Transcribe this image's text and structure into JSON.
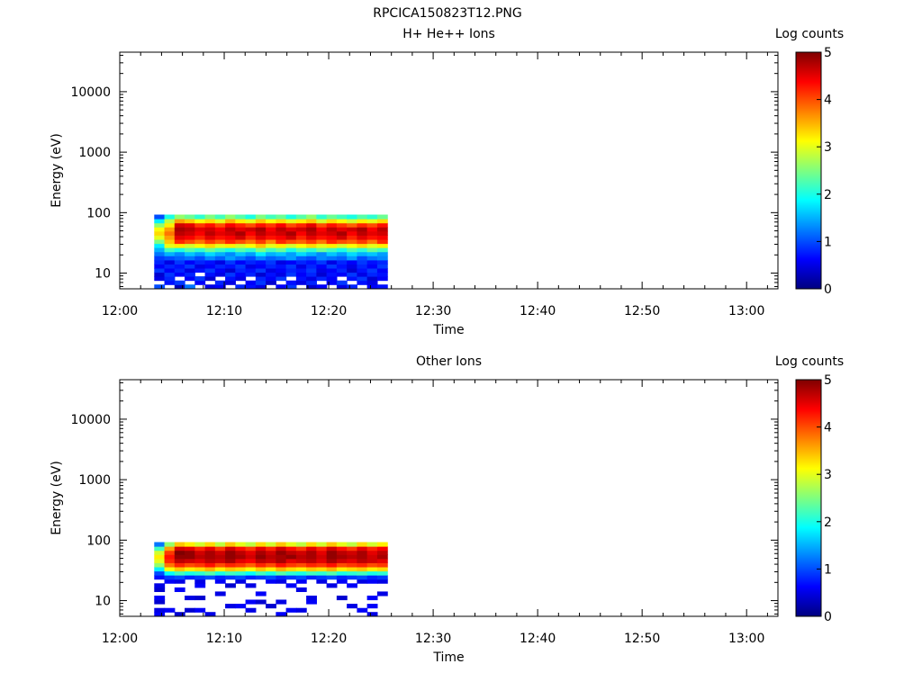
{
  "figure_title": "RPCICA150823T12.PNG",
  "colorbar_palette": [
    "#00007f",
    "#0000ff",
    "#007fff",
    "#00ffff",
    "#7fff7f",
    "#ffff00",
    "#ff7f00",
    "#ff0000",
    "#7f0000"
  ],
  "chart_data": [
    {
      "type": "heatmap",
      "title": "H+ He++ Ions",
      "xlabel": "Time",
      "ylabel": "Energy (eV)",
      "x_tick_labels": [
        "12:00",
        "12:10",
        "12:20",
        "12:30",
        "12:40",
        "12:50",
        "13:00"
      ],
      "x_range_minutes": [
        0,
        63
      ],
      "y_scale": "log",
      "y_tick_labels": [
        "10",
        "100",
        "1000",
        "10000"
      ],
      "y_range": [
        5.5,
        45000
      ],
      "colorbar": {
        "label": "Log counts",
        "range": [
          0,
          5
        ],
        "tick_labels": [
          "0",
          "1",
          "2",
          "3",
          "4",
          "5"
        ]
      },
      "data": {
        "time_start_minutes": 3.3,
        "time_step_minutes": 0.97,
        "energy_bins_eV": [
          6.0,
          7.0,
          8.2,
          9.6,
          11.2,
          13.1,
          15.3,
          17.9,
          21.0,
          24.5,
          28.7,
          33.5,
          39.2,
          45.9,
          53.7,
          62.8,
          73.4,
          85.9
        ],
        "values": [
          [
            1.0,
            null,
            0.3,
            1.2,
            null,
            0.5,
            0.6,
            null,
            0.8,
            0.7,
            0.5,
            null,
            0.6,
            0.9,
            null,
            0.4,
            0.6,
            null,
            0.5,
            0.8,
            null,
            0.6,
            0.7
          ],
          [
            null,
            0.7,
            0.9,
            null,
            0.6,
            null,
            0.8,
            0.5,
            null,
            0.6,
            0.9,
            0.4,
            null,
            0.7,
            0.5,
            0.8,
            null,
            0.6,
            0.9,
            null,
            0.7,
            0.5,
            null
          ],
          [
            0.5,
            0.8,
            null,
            0.6,
            0.9,
            0.4,
            null,
            0.7,
            0.5,
            null,
            0.8,
            0.6,
            0.9,
            null,
            0.7,
            0.5,
            0.8,
            0.6,
            null,
            0.7,
            0.9,
            0.4,
            0.6
          ],
          [
            0.4,
            0.9,
            0.6,
            0.8,
            null,
            0.7,
            0.5,
            0.9,
            0.6,
            0.8,
            0.4,
            0.7,
            0.5,
            0.9,
            0.6,
            0.8,
            0.4,
            0.7,
            0.6,
            0.9,
            0.5,
            0.8,
            0.7
          ],
          [
            0.9,
            0.6,
            0.8,
            0.5,
            0.7,
            0.9,
            0.6,
            0.4,
            0.8,
            0.7,
            0.9,
            0.5,
            0.6,
            0.8,
            0.7,
            0.9,
            0.5,
            0.6,
            0.8,
            0.4,
            0.7,
            0.9,
            0.6
          ],
          [
            0.6,
            0.8,
            0.7,
            0.9,
            0.5,
            0.6,
            0.8,
            0.7,
            0.9,
            0.5,
            0.6,
            0.8,
            0.7,
            0.9,
            0.5,
            0.8,
            0.6,
            0.9,
            0.7,
            0.5,
            0.8,
            0.6,
            0.9
          ],
          [
            0.8,
            0.5,
            0.9,
            0.6,
            0.8,
            0.7,
            0.5,
            0.9,
            0.6,
            0.8,
            0.7,
            0.9,
            0.5,
            0.6,
            0.8,
            0.7,
            0.9,
            0.5,
            0.8,
            0.6,
            0.9,
            0.7,
            0.8
          ],
          [
            0.9,
            1.0,
            1.1,
            1.2,
            1.0,
            1.3,
            1.1,
            1.4,
            1.2,
            1.0,
            1.3,
            1.1,
            1.2,
            1.4,
            1.1,
            1.0,
            1.3,
            1.2,
            1.1,
            1.4,
            1.0,
            1.2,
            1.3
          ],
          [
            1.2,
            1.5,
            1.3,
            1.6,
            1.4,
            1.7,
            1.5,
            1.3,
            1.6,
            1.4,
            1.8,
            1.5,
            1.6,
            1.4,
            1.7,
            1.5,
            1.3,
            1.6,
            1.4,
            1.7,
            1.5,
            1.6,
            1.4
          ],
          [
            1.5,
            2.2,
            2.0,
            2.3,
            2.1,
            2.4,
            2.2,
            2.0,
            2.3,
            2.1,
            2.5,
            2.2,
            2.4,
            2.0,
            2.3,
            2.1,
            2.4,
            2.2,
            2.0,
            2.3,
            2.1,
            2.4,
            2.2
          ],
          [
            1.8,
            3.0,
            3.2,
            2.9,
            3.1,
            3.3,
            3.0,
            3.2,
            2.9,
            3.1,
            3.4,
            3.0,
            3.2,
            2.9,
            3.1,
            3.3,
            3.0,
            3.2,
            2.9,
            3.1,
            3.3,
            3.0,
            3.2
          ],
          [
            2.5,
            3.4,
            4.2,
            4.0,
            3.8,
            4.1,
            3.9,
            4.2,
            4.0,
            3.8,
            4.1,
            3.7,
            4.2,
            4.0,
            3.9,
            4.1,
            3.8,
            4.2,
            4.0,
            3.9,
            4.1,
            3.8,
            4.2
          ],
          [
            3.0,
            3.6,
            4.5,
            4.4,
            4.2,
            4.5,
            4.3,
            4.4,
            4.6,
            4.2,
            4.5,
            4.3,
            4.4,
            4.6,
            4.2,
            4.5,
            4.3,
            4.4,
            4.6,
            4.2,
            4.5,
            4.3,
            4.4
          ],
          [
            3.3,
            3.8,
            4.7,
            4.6,
            4.4,
            4.7,
            4.5,
            4.6,
            4.8,
            4.4,
            4.7,
            4.5,
            4.6,
            4.8,
            4.4,
            4.7,
            4.5,
            4.6,
            4.8,
            4.4,
            4.7,
            4.5,
            4.6
          ],
          [
            3.1,
            3.6,
            4.8,
            4.7,
            4.5,
            4.6,
            4.4,
            4.7,
            4.5,
            4.6,
            4.8,
            4.4,
            4.7,
            4.5,
            4.6,
            4.8,
            4.4,
            4.7,
            4.5,
            4.6,
            4.8,
            4.4,
            4.7
          ],
          [
            2.6,
            3.2,
            4.6,
            4.5,
            4.1,
            4.3,
            4.0,
            4.4,
            4.2,
            4.0,
            4.3,
            4.1,
            4.4,
            4.0,
            4.2,
            4.5,
            4.0,
            4.3,
            4.1,
            3.9,
            4.2,
            4.0,
            4.3
          ],
          [
            1.8,
            2.8,
            3.6,
            3.4,
            3.1,
            3.3,
            3.0,
            3.5,
            3.2,
            3.0,
            3.4,
            3.1,
            3.3,
            3.0,
            3.2,
            3.4,
            2.9,
            3.3,
            3.1,
            2.9,
            3.2,
            3.0,
            3.3
          ],
          [
            1.0,
            2.0,
            2.6,
            2.4,
            2.1,
            2.5,
            2.2,
            2.6,
            2.3,
            2.0,
            2.5,
            2.2,
            2.4,
            2.0,
            2.3,
            2.6,
            2.1,
            2.4,
            2.2,
            2.0,
            2.3,
            2.1,
            2.4
          ]
        ]
      }
    },
    {
      "type": "heatmap",
      "title": "Other Ions",
      "xlabel": "Time",
      "ylabel": "Energy (eV)",
      "x_tick_labels": [
        "12:00",
        "12:10",
        "12:20",
        "12:30",
        "12:40",
        "12:50",
        "13:00"
      ],
      "x_range_minutes": [
        0,
        63
      ],
      "y_scale": "log",
      "y_tick_labels": [
        "10",
        "100",
        "1000",
        "10000"
      ],
      "y_range": [
        5.5,
        45000
      ],
      "colorbar": {
        "label": "Log counts",
        "range": [
          0,
          5
        ],
        "tick_labels": [
          "0",
          "1",
          "2",
          "3",
          "4",
          "5"
        ]
      },
      "data": {
        "time_start_minutes": 3.3,
        "time_step_minutes": 0.97,
        "energy_bins_eV": [
          6.0,
          7.0,
          8.2,
          9.6,
          11.2,
          13.1,
          15.3,
          17.9,
          21.0,
          24.5,
          28.7,
          33.5,
          39.2,
          45.9,
          53.7,
          62.8,
          73.4,
          85.9
        ],
        "values": [
          [
            0.6,
            null,
            0.4,
            null,
            null,
            0.5,
            null,
            null,
            null,
            null,
            null,
            null,
            0.6,
            null,
            null,
            null,
            null,
            null,
            null,
            null,
            null,
            0.5,
            null
          ],
          [
            0.5,
            0.6,
            null,
            0.4,
            0.6,
            null,
            null,
            null,
            null,
            0.5,
            null,
            null,
            null,
            0.6,
            0.5,
            null,
            null,
            null,
            null,
            null,
            0.6,
            null,
            null
          ],
          [
            null,
            null,
            null,
            null,
            null,
            null,
            null,
            0.5,
            0.6,
            null,
            null,
            0.4,
            null,
            null,
            null,
            null,
            null,
            null,
            null,
            0.5,
            null,
            0.6,
            null
          ],
          [
            0.4,
            null,
            null,
            null,
            null,
            null,
            null,
            null,
            null,
            0.6,
            0.4,
            null,
            0.5,
            null,
            null,
            0.6,
            null,
            null,
            null,
            null,
            null,
            null,
            null
          ],
          [
            0.6,
            null,
            null,
            0.5,
            0.4,
            null,
            null,
            null,
            null,
            null,
            null,
            null,
            null,
            null,
            null,
            0.5,
            null,
            null,
            0.4,
            null,
            null,
            0.6,
            null
          ],
          [
            null,
            null,
            null,
            null,
            null,
            null,
            0.5,
            null,
            null,
            null,
            0.6,
            null,
            null,
            null,
            null,
            null,
            null,
            null,
            null,
            null,
            null,
            null,
            0.5
          ],
          [
            0.4,
            null,
            0.6,
            null,
            null,
            null,
            null,
            null,
            null,
            null,
            null,
            null,
            null,
            null,
            0.5,
            null,
            null,
            null,
            null,
            null,
            null,
            null,
            null
          ],
          [
            0.5,
            null,
            null,
            null,
            0.6,
            null,
            null,
            0.4,
            null,
            0.5,
            null,
            null,
            null,
            0.6,
            null,
            null,
            null,
            0.5,
            null,
            0.6,
            null,
            null,
            null
          ],
          [
            null,
            0.6,
            0.5,
            null,
            0.5,
            null,
            0.6,
            null,
            0.5,
            null,
            null,
            0.6,
            0.5,
            null,
            0.6,
            null,
            0.5,
            null,
            0.6,
            null,
            0.5,
            0.6,
            0.5
          ],
          [
            0.7,
            0.9,
            1.0,
            0.8,
            0.9,
            1.0,
            0.8,
            0.9,
            1.0,
            0.8,
            0.9,
            1.0,
            0.8,
            0.9,
            1.0,
            0.8,
            0.9,
            1.0,
            0.8,
            0.9,
            1.0,
            0.8,
            0.9
          ],
          [
            1.0,
            1.9,
            2.2,
            2.0,
            2.1,
            2.3,
            2.0,
            2.2,
            2.1,
            1.9,
            2.2,
            2.0,
            2.3,
            2.1,
            2.0,
            2.2,
            2.1,
            2.3,
            2.0,
            2.1,
            2.2,
            2.0,
            2.1
          ],
          [
            1.8,
            3.1,
            3.4,
            3.2,
            3.3,
            3.5,
            3.2,
            3.4,
            3.3,
            3.1,
            3.4,
            3.2,
            3.5,
            3.3,
            3.2,
            3.4,
            3.3,
            3.5,
            3.2,
            3.3,
            3.4,
            3.2,
            3.3
          ],
          [
            2.6,
            3.8,
            4.2,
            4.0,
            4.1,
            4.3,
            4.0,
            4.2,
            4.1,
            3.9,
            4.2,
            4.0,
            4.3,
            4.1,
            4.0,
            4.2,
            4.1,
            4.3,
            4.0,
            4.1,
            4.2,
            4.0,
            4.1
          ],
          [
            3.0,
            4.2,
            4.7,
            4.6,
            4.5,
            4.7,
            4.6,
            4.8,
            4.5,
            4.4,
            4.7,
            4.6,
            4.8,
            4.5,
            4.6,
            4.7,
            4.5,
            4.8,
            4.6,
            4.5,
            4.7,
            4.6,
            4.5
          ],
          [
            3.2,
            4.3,
            4.9,
            4.9,
            4.7,
            4.8,
            4.7,
            4.9,
            4.8,
            4.6,
            4.9,
            4.7,
            4.8,
            4.9,
            4.7,
            4.8,
            4.6,
            4.9,
            4.8,
            4.7,
            4.8,
            4.6,
            4.8
          ],
          [
            2.9,
            4.1,
            5.0,
            4.9,
            4.6,
            4.8,
            4.6,
            4.9,
            4.7,
            4.5,
            4.8,
            4.6,
            4.9,
            4.7,
            4.6,
            4.8,
            4.5,
            4.9,
            4.7,
            4.6,
            4.8,
            4.5,
            4.7
          ],
          [
            2.2,
            3.6,
            4.6,
            4.5,
            4.2,
            4.5,
            4.1,
            4.6,
            4.3,
            4.1,
            4.5,
            4.2,
            4.6,
            4.3,
            4.1,
            4.5,
            4.2,
            4.6,
            4.3,
            4.1,
            4.5,
            4.2,
            4.4
          ],
          [
            1.2,
            2.6,
            3.4,
            3.2,
            2.9,
            3.3,
            2.8,
            3.4,
            3.0,
            2.8,
            3.3,
            2.9,
            3.4,
            3.0,
            2.8,
            3.3,
            2.9,
            3.4,
            3.0,
            2.8,
            3.3,
            2.9,
            3.2
          ]
        ]
      }
    }
  ]
}
